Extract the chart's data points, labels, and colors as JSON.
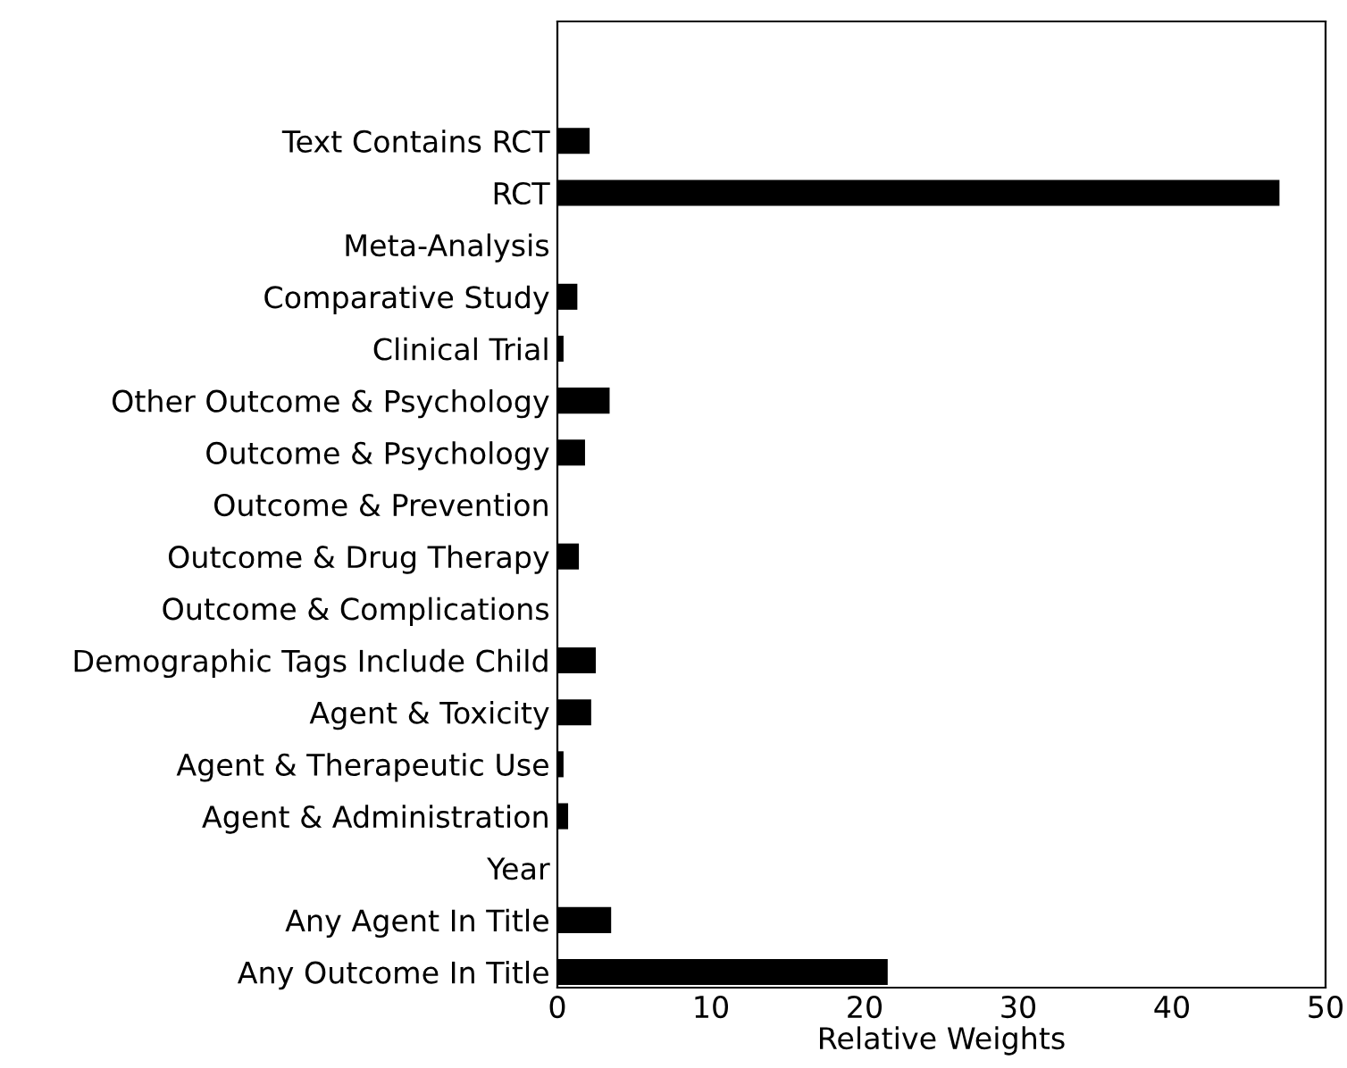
{
  "chart_data": {
    "type": "bar",
    "orientation": "horizontal",
    "xlabel": "Relative Weights",
    "categories": [
      "Text Contains RCT",
      "RCT",
      "Meta-Analysis",
      "Comparative Study",
      "Clinical Trial",
      "Other Outcome & Psychology",
      "Outcome & Psychology",
      "Outcome & Prevention",
      "Outcome & Drug Therapy",
      "Outcome & Complications",
      "Demographic Tags Include Child",
      "Agent & Toxicity",
      "Agent & Therapeutic Use",
      "Agent & Administration",
      "Year",
      "Any Agent In Title",
      "Any Outcome In Title"
    ],
    "values": [
      2.1,
      47.0,
      0,
      1.3,
      0.4,
      3.4,
      1.8,
      0,
      1.4,
      0,
      2.5,
      2.2,
      0.4,
      0.7,
      0,
      3.5,
      21.5
    ],
    "color": "#000000",
    "xlim": [
      0,
      50
    ],
    "xticks": [
      0,
      10,
      20,
      30,
      40,
      50
    ],
    "grid": false,
    "legend": false
  }
}
